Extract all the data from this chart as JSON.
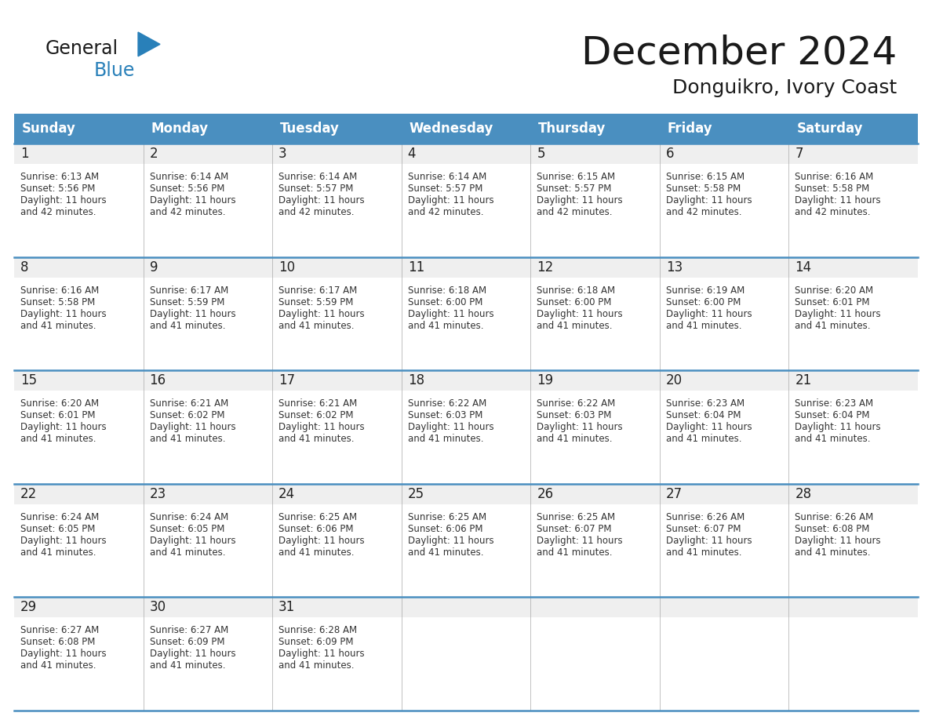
{
  "title": "December 2024",
  "subtitle": "Donguikro, Ivory Coast",
  "header_color": "#4A8FC0",
  "header_text_color": "#FFFFFF",
  "weekdays": [
    "Sunday",
    "Monday",
    "Tuesday",
    "Wednesday",
    "Thursday",
    "Friday",
    "Saturday"
  ],
  "days": [
    {
      "day": 1,
      "col": 0,
      "row": 0,
      "sunrise": "6:13 AM",
      "sunset": "5:56 PM",
      "daylight": "11 hours and 42 minutes."
    },
    {
      "day": 2,
      "col": 1,
      "row": 0,
      "sunrise": "6:14 AM",
      "sunset": "5:56 PM",
      "daylight": "11 hours and 42 minutes."
    },
    {
      "day": 3,
      "col": 2,
      "row": 0,
      "sunrise": "6:14 AM",
      "sunset": "5:57 PM",
      "daylight": "11 hours and 42 minutes."
    },
    {
      "day": 4,
      "col": 3,
      "row": 0,
      "sunrise": "6:14 AM",
      "sunset": "5:57 PM",
      "daylight": "11 hours and 42 minutes."
    },
    {
      "day": 5,
      "col": 4,
      "row": 0,
      "sunrise": "6:15 AM",
      "sunset": "5:57 PM",
      "daylight": "11 hours and 42 minutes."
    },
    {
      "day": 6,
      "col": 5,
      "row": 0,
      "sunrise": "6:15 AM",
      "sunset": "5:58 PM",
      "daylight": "11 hours and 42 minutes."
    },
    {
      "day": 7,
      "col": 6,
      "row": 0,
      "sunrise": "6:16 AM",
      "sunset": "5:58 PM",
      "daylight": "11 hours and 42 minutes."
    },
    {
      "day": 8,
      "col": 0,
      "row": 1,
      "sunrise": "6:16 AM",
      "sunset": "5:58 PM",
      "daylight": "11 hours and 41 minutes."
    },
    {
      "day": 9,
      "col": 1,
      "row": 1,
      "sunrise": "6:17 AM",
      "sunset": "5:59 PM",
      "daylight": "11 hours and 41 minutes."
    },
    {
      "day": 10,
      "col": 2,
      "row": 1,
      "sunrise": "6:17 AM",
      "sunset": "5:59 PM",
      "daylight": "11 hours and 41 minutes."
    },
    {
      "day": 11,
      "col": 3,
      "row": 1,
      "sunrise": "6:18 AM",
      "sunset": "6:00 PM",
      "daylight": "11 hours and 41 minutes."
    },
    {
      "day": 12,
      "col": 4,
      "row": 1,
      "sunrise": "6:18 AM",
      "sunset": "6:00 PM",
      "daylight": "11 hours and 41 minutes."
    },
    {
      "day": 13,
      "col": 5,
      "row": 1,
      "sunrise": "6:19 AM",
      "sunset": "6:00 PM",
      "daylight": "11 hours and 41 minutes."
    },
    {
      "day": 14,
      "col": 6,
      "row": 1,
      "sunrise": "6:20 AM",
      "sunset": "6:01 PM",
      "daylight": "11 hours and 41 minutes."
    },
    {
      "day": 15,
      "col": 0,
      "row": 2,
      "sunrise": "6:20 AM",
      "sunset": "6:01 PM",
      "daylight": "11 hours and 41 minutes."
    },
    {
      "day": 16,
      "col": 1,
      "row": 2,
      "sunrise": "6:21 AM",
      "sunset": "6:02 PM",
      "daylight": "11 hours and 41 minutes."
    },
    {
      "day": 17,
      "col": 2,
      "row": 2,
      "sunrise": "6:21 AM",
      "sunset": "6:02 PM",
      "daylight": "11 hours and 41 minutes."
    },
    {
      "day": 18,
      "col": 3,
      "row": 2,
      "sunrise": "6:22 AM",
      "sunset": "6:03 PM",
      "daylight": "11 hours and 41 minutes."
    },
    {
      "day": 19,
      "col": 4,
      "row": 2,
      "sunrise": "6:22 AM",
      "sunset": "6:03 PM",
      "daylight": "11 hours and 41 minutes."
    },
    {
      "day": 20,
      "col": 5,
      "row": 2,
      "sunrise": "6:23 AM",
      "sunset": "6:04 PM",
      "daylight": "11 hours and 41 minutes."
    },
    {
      "day": 21,
      "col": 6,
      "row": 2,
      "sunrise": "6:23 AM",
      "sunset": "6:04 PM",
      "daylight": "11 hours and 41 minutes."
    },
    {
      "day": 22,
      "col": 0,
      "row": 3,
      "sunrise": "6:24 AM",
      "sunset": "6:05 PM",
      "daylight": "11 hours and 41 minutes."
    },
    {
      "day": 23,
      "col": 1,
      "row": 3,
      "sunrise": "6:24 AM",
      "sunset": "6:05 PM",
      "daylight": "11 hours and 41 minutes."
    },
    {
      "day": 24,
      "col": 2,
      "row": 3,
      "sunrise": "6:25 AM",
      "sunset": "6:06 PM",
      "daylight": "11 hours and 41 minutes."
    },
    {
      "day": 25,
      "col": 3,
      "row": 3,
      "sunrise": "6:25 AM",
      "sunset": "6:06 PM",
      "daylight": "11 hours and 41 minutes."
    },
    {
      "day": 26,
      "col": 4,
      "row": 3,
      "sunrise": "6:25 AM",
      "sunset": "6:07 PM",
      "daylight": "11 hours and 41 minutes."
    },
    {
      "day": 27,
      "col": 5,
      "row": 3,
      "sunrise": "6:26 AM",
      "sunset": "6:07 PM",
      "daylight": "11 hours and 41 minutes."
    },
    {
      "day": 28,
      "col": 6,
      "row": 3,
      "sunrise": "6:26 AM",
      "sunset": "6:08 PM",
      "daylight": "11 hours and 41 minutes."
    },
    {
      "day": 29,
      "col": 0,
      "row": 4,
      "sunrise": "6:27 AM",
      "sunset": "6:08 PM",
      "daylight": "11 hours and 41 minutes."
    },
    {
      "day": 30,
      "col": 1,
      "row": 4,
      "sunrise": "6:27 AM",
      "sunset": "6:09 PM",
      "daylight": "11 hours and 41 minutes."
    },
    {
      "day": 31,
      "col": 2,
      "row": 4,
      "sunrise": "6:28 AM",
      "sunset": "6:09 PM",
      "daylight": "11 hours and 41 minutes."
    }
  ],
  "num_rows": 5,
  "num_cols": 7,
  "bg_color": "#FFFFFF",
  "cell_bg_color": "#FFFFFF",
  "day_num_bg_color": "#EFEFEF",
  "body_text_bg_color": "#FFFFFF",
  "border_color": "#4A8FC0",
  "cell_divider_color": "#AAAAAA",
  "day_num_color": "#222222",
  "cell_text_color": "#333333",
  "logo_general_color": "#1A1A1A",
  "logo_blue_color": "#2980B9",
  "logo_triangle_color": "#2980B9",
  "title_color": "#1A1A1A",
  "subtitle_color": "#1A1A1A"
}
